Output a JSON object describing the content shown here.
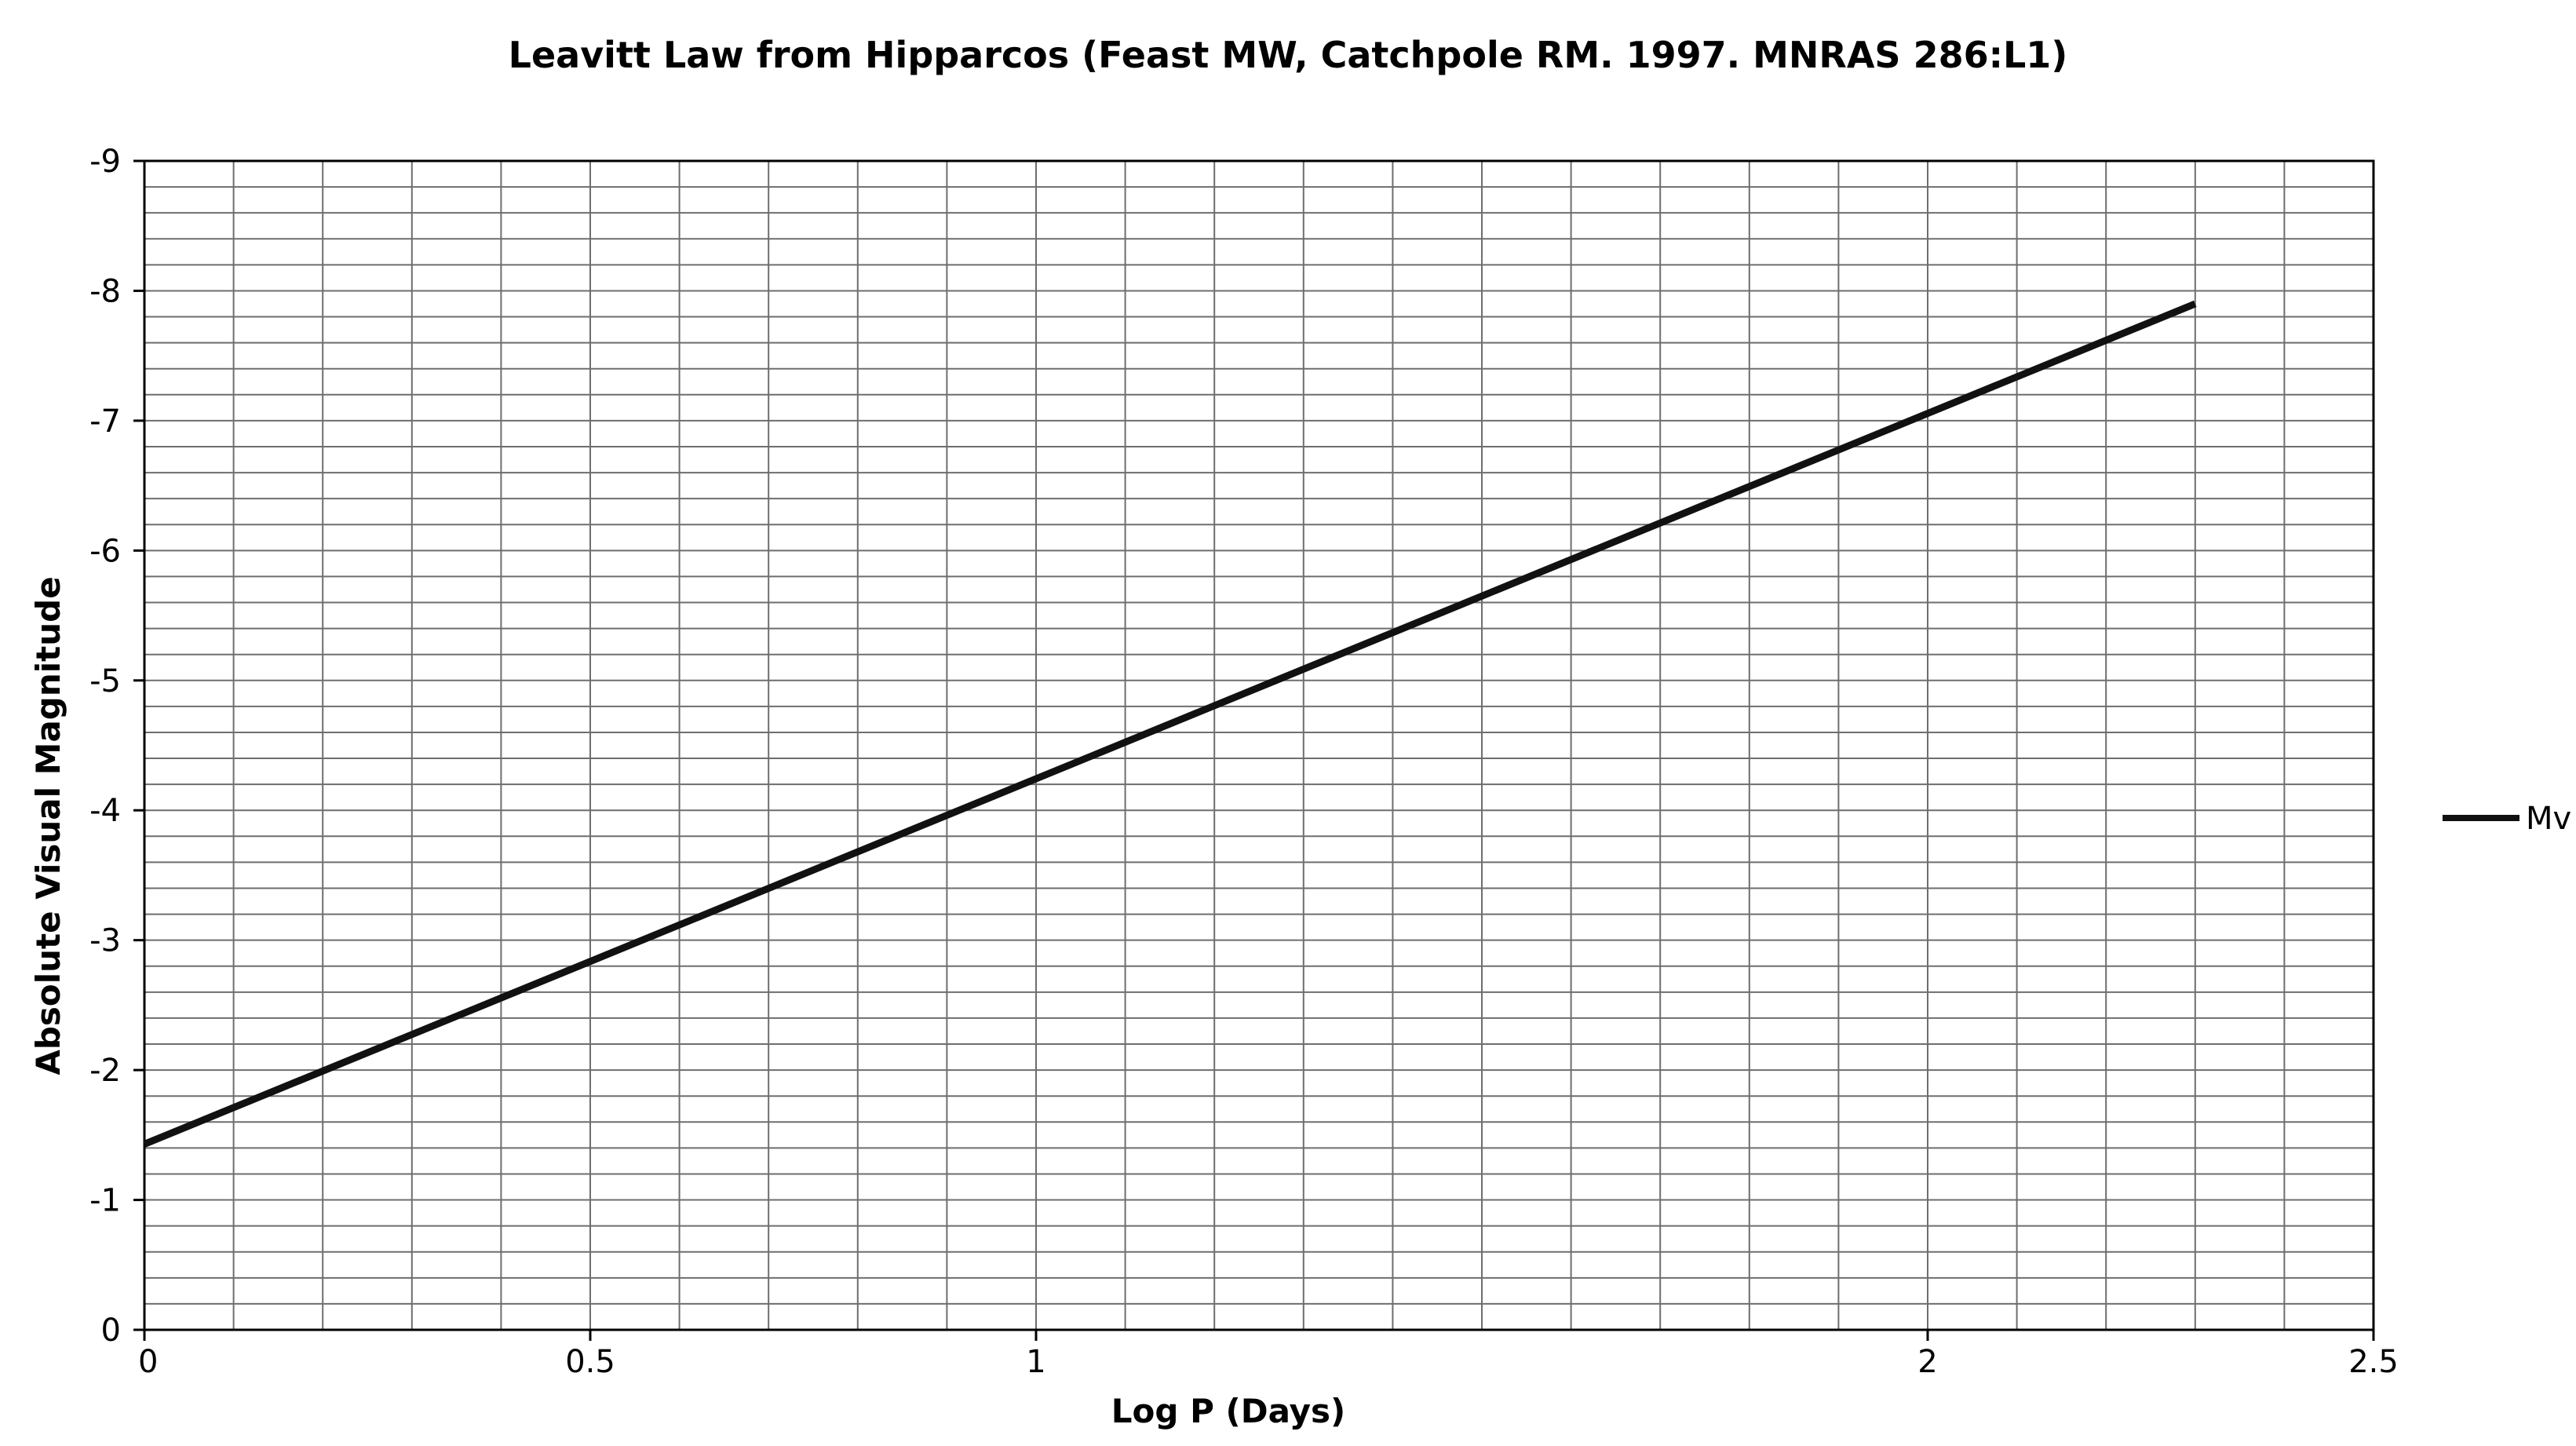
{
  "chart_data": {
    "type": "line",
    "title": "Leavitt Law from Hipparcos (Feast MW, Catchpole RM. 1997. MNRAS 286:L1)",
    "xlabel": "Log P  (Days)",
    "ylabel": "Absolute Visual Magnitude",
    "xlim": [
      0,
      2.5
    ],
    "ylim": [
      0,
      -9
    ],
    "y_inverted": true,
    "grid": true,
    "x_ticks": [
      0,
      0.5,
      1,
      2,
      2.5
    ],
    "x_tick_labels": [
      "0",
      "0.5",
      "1",
      "2",
      "2.5"
    ],
    "x_minor_step": 0.1,
    "y_ticks": [
      0,
      -1,
      -2,
      -3,
      -4,
      -5,
      -6,
      -7,
      -8,
      -9
    ],
    "y_tick_labels": [
      "0",
      "-1",
      "-2",
      "-3",
      "-4",
      "-5",
      "-6",
      "-7",
      "-8",
      "-9"
    ],
    "y_minor_step": 0.2,
    "legend_position": "right",
    "series": [
      {
        "name": "Mv",
        "color": "#111111",
        "x": [
          0,
          2.3
        ],
        "y": [
          -1.43,
          -7.9
        ]
      }
    ]
  }
}
